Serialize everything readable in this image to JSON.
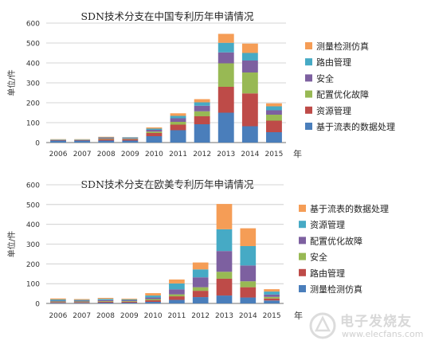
{
  "chart_data": [
    {
      "type": "bar",
      "stacked": true,
      "title": "SDN技术分支在中国专利历年申请情况",
      "xlabel": "年",
      "ylabel": "单位/件",
      "ylim": [
        0,
        600
      ],
      "yticks": [
        0,
        100,
        200,
        300,
        400,
        500,
        600
      ],
      "grid": true,
      "legend_position": "right",
      "categories": [
        "2006",
        "2007",
        "2008",
        "2009",
        "2010",
        "2011",
        "2012",
        "2013",
        "2014",
        "2015"
      ],
      "series": [
        {
          "name": "基于流表的数据处理",
          "color": "#4a7ebb",
          "values": [
            10,
            10,
            10,
            10,
            32,
            62,
            92,
            150,
            82,
            52
          ]
        },
        {
          "name": "资源管理",
          "color": "#be4b48",
          "values": [
            3,
            3,
            7,
            6,
            16,
            28,
            40,
            130,
            165,
            58
          ]
        },
        {
          "name": "配置优化故障",
          "color": "#98b954",
          "values": [
            1,
            1,
            3,
            3,
            7,
            14,
            25,
            118,
            105,
            30
          ]
        },
        {
          "name": "安全",
          "color": "#7d60a0",
          "values": [
            1,
            1,
            4,
            4,
            9,
            18,
            28,
            55,
            60,
            22
          ]
        },
        {
          "name": "路由管理",
          "color": "#46aac5",
          "values": [
            1,
            1,
            2,
            3,
            6,
            12,
            17,
            48,
            38,
            20
          ]
        },
        {
          "name": "测量检测仿真",
          "color": "#f59d56",
          "values": [
            1,
            1,
            3,
            1,
            6,
            13,
            16,
            45,
            47,
            15
          ]
        }
      ]
    },
    {
      "type": "bar",
      "stacked": true,
      "title": "SDN技术分支在欧美专利历年申请情况",
      "xlabel": "年",
      "ylabel": "单位/件",
      "ylim": [
        0,
        600
      ],
      "yticks": [
        0,
        100,
        200,
        300,
        400,
        500,
        600
      ],
      "grid": true,
      "legend_position": "right",
      "categories": [
        "2006",
        "2007",
        "2008",
        "2009",
        "2010",
        "2011",
        "2012",
        "2013",
        "2014",
        "2015"
      ],
      "series": [
        {
          "name": "测量检测仿真",
          "color": "#4a7ebb",
          "values": [
            3,
            3,
            4,
            4,
            8,
            18,
            32,
            40,
            30,
            15
          ]
        },
        {
          "name": "路由管理",
          "color": "#be4b48",
          "values": [
            4,
            4,
            5,
            5,
            8,
            18,
            32,
            85,
            52,
            10
          ]
        },
        {
          "name": "安全",
          "color": "#98b954",
          "values": [
            3,
            3,
            3,
            3,
            6,
            10,
            18,
            35,
            30,
            8
          ]
        },
        {
          "name": "配置优化故障",
          "color": "#7d60a0",
          "values": [
            4,
            4,
            5,
            4,
            8,
            25,
            50,
            105,
            80,
            12
          ]
        },
        {
          "name": "资源管理",
          "color": "#46aac5",
          "values": [
            6,
            4,
            6,
            4,
            10,
            30,
            40,
            110,
            98,
            15
          ]
        },
        {
          "name": "基于流表的数据处理",
          "color": "#f59d56",
          "values": [
            5,
            4,
            5,
            4,
            12,
            20,
            35,
            128,
            90,
            12
          ]
        }
      ]
    }
  ],
  "watermark": {
    "text": "电子发烧友",
    "url": "www.elecfans.com"
  }
}
